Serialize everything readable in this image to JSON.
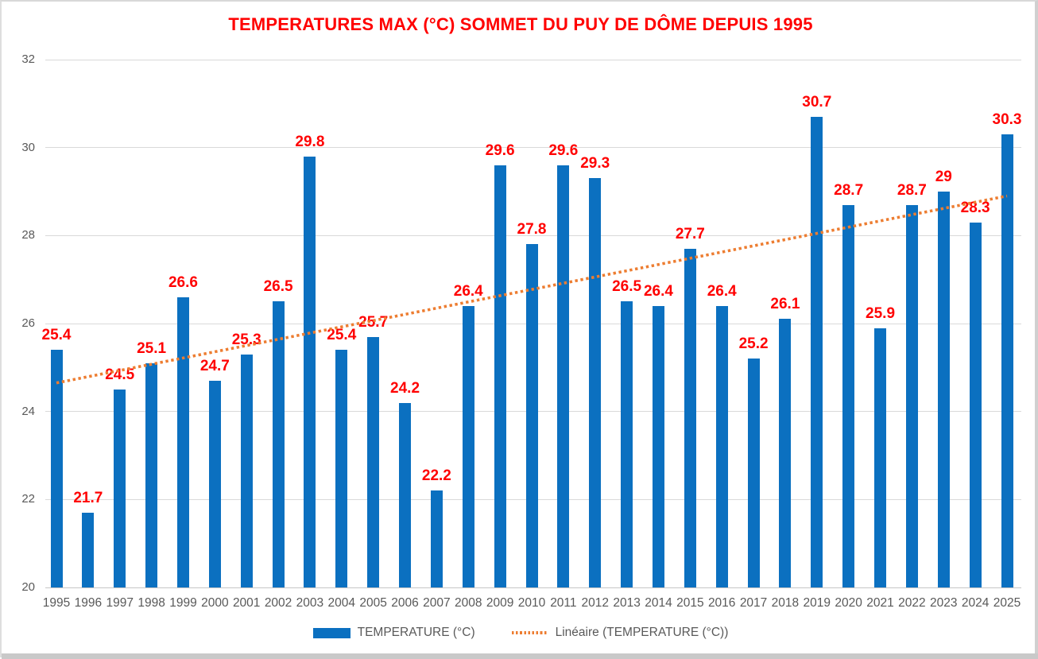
{
  "chart_data": {
    "type": "bar",
    "title": "TEMPERATURES MAX (°C) SOMMET DU PUY DE DÔME DEPUIS 1995",
    "title_color": "#FF0000",
    "categories": [
      "1995",
      "1996",
      "1997",
      "1998",
      "1999",
      "2000",
      "2001",
      "2002",
      "2003",
      "2004",
      "2005",
      "2006",
      "2007",
      "2008",
      "2009",
      "2010",
      "2011",
      "2012",
      "2013",
      "2014",
      "2015",
      "2016",
      "2017",
      "2018",
      "2019",
      "2020",
      "2021",
      "2022",
      "2023",
      "2024",
      "2025"
    ],
    "series": [
      {
        "name": "TEMPERATURE (°C)",
        "color": "#0B70C0",
        "values": [
          25.4,
          21.7,
          24.5,
          25.1,
          26.6,
          24.7,
          25.3,
          26.5,
          29.8,
          25.4,
          25.7,
          24.2,
          22.2,
          26.4,
          29.6,
          27.8,
          29.6,
          29.3,
          26.5,
          26.4,
          27.7,
          26.4,
          25.2,
          26.1,
          30.7,
          28.7,
          25.9,
          28.7,
          29,
          28.3,
          30.3
        ]
      }
    ],
    "data_label_color": "#FF0000",
    "xlabel": "",
    "ylabel": "",
    "ylim": [
      20,
      32
    ],
    "yticks": [
      20,
      22,
      24,
      26,
      28,
      30,
      32
    ],
    "grid": true,
    "gridline_color": "#D9D9D9",
    "axis_line_color": "#C6C6C6",
    "axis_text_color": "#595959",
    "trendline": {
      "name": "Linéaire (TEMPERATURE (°C))",
      "type": "linear",
      "color": "#ED7D31",
      "style": "dotted",
      "start_value": 24.65,
      "end_value": 28.9
    },
    "legend": {
      "position": "bottom",
      "entries": [
        "TEMPERATURE (°C)",
        "Linéaire (TEMPERATURE (°C))"
      ]
    }
  }
}
